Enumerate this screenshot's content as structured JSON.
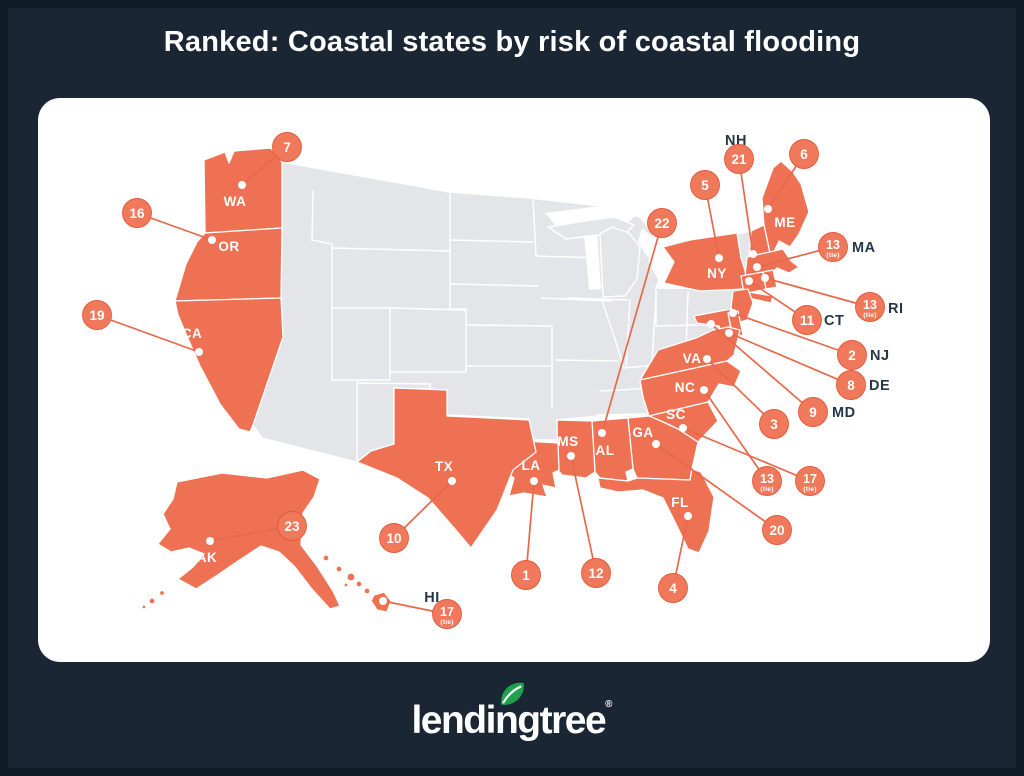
{
  "title": "Ranked: Coastal states by risk of coastal flooding",
  "brand": {
    "wordmark": "lendingtree",
    "registered": "®"
  },
  "colors": {
    "background": "#1b2634",
    "frame": "#0e1926",
    "card": "#ffffff",
    "title_text": "#ffffff",
    "state_default": "#e3e5e9",
    "state_highlight": "#ed7152",
    "leader_line": "#e8694a",
    "badge_fill": "#f0795b",
    "badge_rim": "#e2593a",
    "badge_text": "#ffffff",
    "label_on_state": "#ffffff",
    "label_outside": "#253746",
    "leaf_green": "#1fa14d"
  },
  "chart_data": {
    "type": "map",
    "title": "Ranked: Coastal states by risk of coastal flooding",
    "region": "United States",
    "legend_meaning": "Coastal states shaded orange; numbered badge = flood-risk rank (1 = highest risk). Non-coastal states gray.",
    "tie_label": "(tie)",
    "states": [
      {
        "code": "LA",
        "rank": 1,
        "tie": false,
        "badge": [
          526,
          575
        ],
        "dot": [
          534,
          481
        ],
        "label": [
          531,
          470
        ],
        "label_anchor": "middle",
        "label_placement": "on-state"
      },
      {
        "code": "NJ",
        "rank": 2,
        "tie": false,
        "badge": [
          852,
          355
        ],
        "dot": [
          733,
          313
        ],
        "label": [
          870,
          360
        ],
        "label_anchor": "start",
        "label_placement": "outside"
      },
      {
        "code": "VA",
        "rank": 3,
        "tie": false,
        "badge": [
          774,
          424
        ],
        "dot": [
          707,
          359
        ],
        "label": [
          692,
          363
        ],
        "label_anchor": "middle",
        "label_placement": "on-state"
      },
      {
        "code": "FL",
        "rank": 4,
        "tie": false,
        "badge": [
          673,
          588
        ],
        "dot": [
          688,
          516
        ],
        "label": [
          680,
          507
        ],
        "label_anchor": "middle",
        "label_placement": "on-state"
      },
      {
        "code": "NY",
        "rank": 5,
        "tie": false,
        "badge": [
          705,
          185
        ],
        "dot": [
          719,
          258
        ],
        "label": [
          717,
          278
        ],
        "label_anchor": "middle",
        "label_placement": "on-state"
      },
      {
        "code": "ME",
        "rank": 6,
        "tie": false,
        "badge": [
          804,
          154
        ],
        "dot": [
          768,
          209
        ],
        "label": [
          785,
          227
        ],
        "label_anchor": "middle",
        "label_placement": "on-state"
      },
      {
        "code": "WA",
        "rank": 7,
        "tie": false,
        "badge": [
          287,
          147
        ],
        "dot": [
          242,
          185
        ],
        "label": [
          235,
          206
        ],
        "label_anchor": "middle",
        "label_placement": "on-state"
      },
      {
        "code": "DE",
        "rank": 8,
        "tie": false,
        "badge": [
          851,
          385
        ],
        "dot": [
          729,
          333
        ],
        "label": [
          869,
          390
        ],
        "label_anchor": "start",
        "label_placement": "outside"
      },
      {
        "code": "MD",
        "rank": 9,
        "tie": false,
        "badge": [
          813,
          412
        ],
        "dot": [
          711,
          324
        ],
        "label": [
          832,
          417
        ],
        "label_anchor": "start",
        "label_placement": "outside"
      },
      {
        "code": "TX",
        "rank": 10,
        "tie": false,
        "badge": [
          394,
          538
        ],
        "dot": [
          452,
          481
        ],
        "label": [
          444,
          471
        ],
        "label_anchor": "middle",
        "label_placement": "on-state"
      },
      {
        "code": "CT",
        "rank": 11,
        "tie": false,
        "badge": [
          807,
          320
        ],
        "dot": [
          749,
          281
        ],
        "label": [
          824,
          325
        ],
        "label_anchor": "start",
        "label_placement": "outside"
      },
      {
        "code": "MS",
        "rank": 12,
        "tie": false,
        "badge": [
          596,
          573
        ],
        "dot": [
          571,
          456
        ],
        "label": [
          568,
          446
        ],
        "label_anchor": "middle",
        "label_placement": "on-state"
      },
      {
        "code": "MA",
        "rank": 13,
        "tie": true,
        "badge": [
          833,
          247
        ],
        "dot": [
          757,
          267
        ],
        "label": [
          852,
          252
        ],
        "label_anchor": "start",
        "label_placement": "outside"
      },
      {
        "code": "NC",
        "rank": 13,
        "tie": true,
        "badge": [
          767,
          481
        ],
        "dot": [
          704,
          390
        ],
        "label": [
          685,
          392
        ],
        "label_anchor": "middle",
        "label_placement": "on-state"
      },
      {
        "code": "RI",
        "rank": 13,
        "tie": true,
        "badge": [
          870,
          307
        ],
        "dot": [
          765,
          278
        ],
        "label": [
          888,
          313
        ],
        "label_anchor": "start",
        "label_placement": "outside"
      },
      {
        "code": "OR",
        "rank": 16,
        "tie": false,
        "badge": [
          137,
          213
        ],
        "dot": [
          212,
          240
        ],
        "label": [
          229,
          251
        ],
        "label_anchor": "middle",
        "label_placement": "on-state"
      },
      {
        "code": "HI",
        "rank": 17,
        "tie": true,
        "badge": [
          447,
          614
        ],
        "dot": [
          383,
          601
        ],
        "label": [
          432,
          602
        ],
        "label_anchor": "middle",
        "label_placement": "outside"
      },
      {
        "code": "SC",
        "rank": 17,
        "tie": true,
        "badge": [
          810,
          481
        ],
        "dot": [
          683,
          428
        ],
        "label": [
          676,
          419
        ],
        "label_anchor": "middle",
        "label_placement": "on-state"
      },
      {
        "code": "CA",
        "rank": 19,
        "tie": false,
        "badge": [
          97,
          315
        ],
        "dot": [
          199,
          352
        ],
        "label": [
          192,
          338
        ],
        "label_anchor": "middle",
        "label_placement": "on-state"
      },
      {
        "code": "GA",
        "rank": 20,
        "tie": false,
        "badge": [
          777,
          530
        ],
        "dot": [
          656,
          444
        ],
        "label": [
          643,
          437
        ],
        "label_anchor": "middle",
        "label_placement": "on-state"
      },
      {
        "code": "NH",
        "rank": 21,
        "tie": false,
        "badge": [
          739,
          159
        ],
        "dot": [
          753,
          254
        ],
        "label": [
          736,
          145
        ],
        "label_anchor": "middle",
        "label_placement": "outside"
      },
      {
        "code": "AL",
        "rank": 22,
        "tie": false,
        "badge": [
          662,
          223
        ],
        "dot": [
          602,
          433
        ],
        "label": [
          605,
          455
        ],
        "label_anchor": "middle",
        "label_placement": "on-state"
      },
      {
        "code": "AK",
        "rank": 23,
        "tie": false,
        "badge": [
          292,
          526
        ],
        "dot": [
          210,
          541
        ],
        "label": [
          207,
          562
        ],
        "label_anchor": "middle",
        "label_placement": "on-state"
      }
    ]
  }
}
